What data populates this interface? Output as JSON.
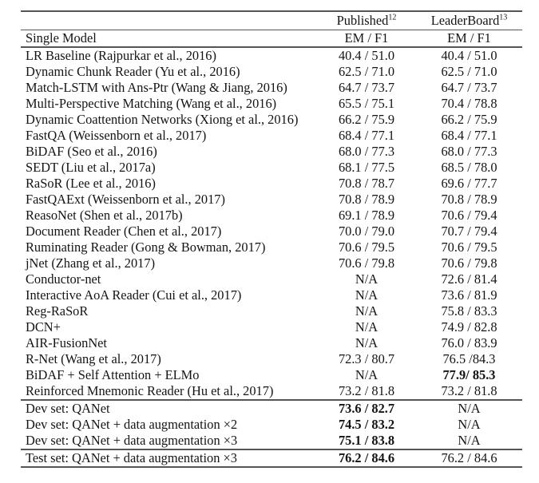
{
  "table": {
    "header": {
      "published_label": "Published",
      "published_superscript": "12",
      "leaderboard_label": "LeaderBoard",
      "leaderboard_superscript": "13",
      "model_column_label": "Single Model",
      "published_metric_label": "EM / F1",
      "leaderboard_metric_label": "EM / F1"
    },
    "main_rows": [
      {
        "model": "LR Baseline (Rajpurkar et al., 2016)",
        "published": "40.4 / 51.0",
        "leaderboard": "40.4 / 51.0"
      },
      {
        "model": "Dynamic Chunk Reader (Yu et al., 2016)",
        "published": "62.5 / 71.0",
        "leaderboard": "62.5 / 71.0"
      },
      {
        "model": "Match-LSTM with Ans-Ptr (Wang & Jiang, 2016)",
        "published": "64.7 / 73.7",
        "leaderboard": "64.7 / 73.7"
      },
      {
        "model": "Multi-Perspective Matching (Wang et al., 2016)",
        "published": "65.5 / 75.1",
        "leaderboard": "70.4 / 78.8"
      },
      {
        "model": "Dynamic Coattention Networks (Xiong et al., 2016)",
        "published": "66.2 / 75.9",
        "leaderboard": "66.2 / 75.9"
      },
      {
        "model": "FastQA (Weissenborn et al., 2017)",
        "published": "68.4 / 77.1",
        "leaderboard": "68.4 / 77.1"
      },
      {
        "model": "BiDAF (Seo et al., 2016)",
        "published": "68.0 / 77.3",
        "leaderboard": "68.0 / 77.3"
      },
      {
        "model": "SEDT (Liu et al., 2017a)",
        "published": "68.1 / 77.5",
        "leaderboard": "68.5 / 78.0"
      },
      {
        "model": "RaSoR (Lee et al., 2016)",
        "published": "70.8 / 78.7",
        "leaderboard": "69.6 / 77.7"
      },
      {
        "model": "FastQAExt (Weissenborn et al., 2017)",
        "published": "70.8 / 78.9",
        "leaderboard": "70.8 / 78.9"
      },
      {
        "model": "ReasoNet (Shen et al., 2017b)",
        "published": "69.1 / 78.9",
        "leaderboard": "70.6 / 79.4"
      },
      {
        "model": "Document Reader (Chen et al., 2017)",
        "published": "70.0 / 79.0",
        "leaderboard": "70.7 / 79.4"
      },
      {
        "model": "Ruminating Reader (Gong & Bowman, 2017)",
        "published": "70.6 / 79.5",
        "leaderboard": "70.6 / 79.5"
      },
      {
        "model": "jNet (Zhang et al., 2017)",
        "published": "70.6 / 79.8",
        "leaderboard": "70.6 / 79.8"
      },
      {
        "model": "Conductor-net",
        "published": "N/A",
        "leaderboard": "72.6 / 81.4"
      },
      {
        "model": "Interactive AoA Reader (Cui et al., 2017)",
        "published": "N/A",
        "leaderboard": "73.6 / 81.9"
      },
      {
        "model": "Reg-RaSoR",
        "published": "N/A",
        "leaderboard": "75.8 / 83.3"
      },
      {
        "model": "DCN+",
        "published": "N/A",
        "leaderboard": "74.9 / 82.8"
      },
      {
        "model": "AIR-FusionNet",
        "published": "N/A",
        "leaderboard": "76.0 / 83.9"
      },
      {
        "model": "R-Net (Wang et al., 2017)",
        "published": "72.3 / 80.7",
        "leaderboard": "76.5 /84.3"
      },
      {
        "model": "BiDAF + Self Attention + ELMo",
        "published": "N/A",
        "leaderboard": "77.9/ 85.3",
        "leaderboard_bold": true
      },
      {
        "model": "Reinforced Mnemonic Reader (Hu et al., 2017)",
        "published": "73.2 / 81.8",
        "leaderboard": "73.2 / 81.8"
      }
    ],
    "dev_rows": [
      {
        "model": "Dev set: QANet",
        "published": "73.6 / 82.7",
        "published_bold": true,
        "leaderboard": "N/A"
      },
      {
        "model": "Dev set: QANet + data augmentation ×2",
        "published": "74.5 / 83.2",
        "published_bold": true,
        "leaderboard": "N/A"
      },
      {
        "model": "Dev set: QANet + data augmentation ×3",
        "published": "75.1 / 83.8",
        "published_bold": true,
        "leaderboard": "N/A"
      }
    ],
    "test_rows": [
      {
        "model": "Test set: QANet + data augmentation ×3",
        "published": "76.2 / 84.6",
        "published_bold": true,
        "leaderboard": "76.2 / 84.6"
      }
    ]
  },
  "colors": {
    "text": "#141414",
    "rule": "#555555",
    "background": "#ffffff"
  }
}
